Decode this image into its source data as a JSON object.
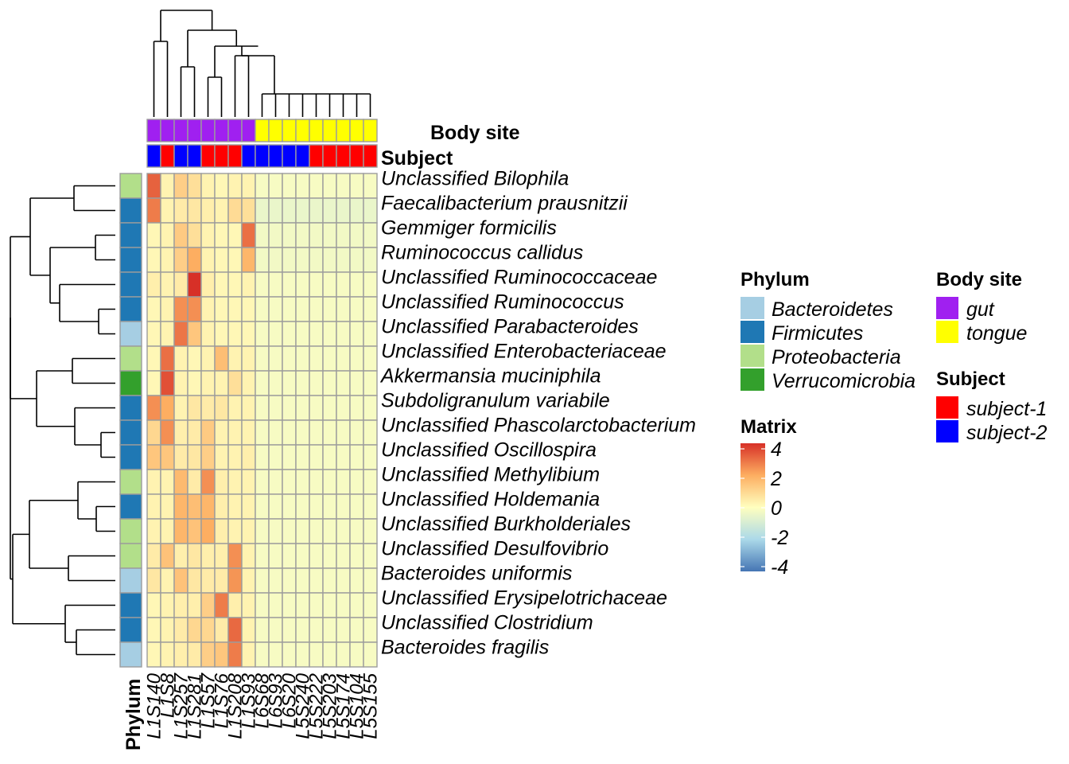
{
  "chart_data": {
    "type": "heatmap",
    "columns": [
      "L1S140",
      "L1S8",
      "L1S257",
      "L1S281",
      "L1S57",
      "L1S76",
      "L1S208",
      "L1S93",
      "L6S68",
      "L6S93",
      "L6S20",
      "L5S240",
      "L5S222",
      "L5S203",
      "L5S174",
      "L5S104",
      "L5S155"
    ],
    "rows": [
      "Unclassified  Bilophila",
      "Faecalibacterium prausnitzii",
      "Gemmiger formicilis",
      "Ruminococcus callidus",
      "Unclassified Ruminococcaceae",
      "Unclassified  Ruminococcus",
      "Unclassified  Parabacteroides",
      "Unclassified Enterobacteriaceae",
      "Akkermansia muciniphila",
      "Subdoligranulum variabile",
      "Unclassified  Phascolarctobacterium",
      "Unclassified  Oscillospira",
      "Unclassified  Methylibium",
      "Unclassified  Holdemania",
      "Unclassified Burkholderiales",
      "Unclassified  Desulfovibrio",
      "Bacteroides uniformis",
      "Unclassified Erysipelotrichaceae",
      "Unclassified  Clostridium",
      "Bacteroides fragilis"
    ],
    "values": [
      [
        3.2,
        0.3,
        1.2,
        0.8,
        0.3,
        0.2,
        0.3,
        0.3,
        -0.2,
        -0.2,
        -0.2,
        -0.2,
        -0.2,
        -0.2,
        -0.2,
        -0.2,
        -0.2
      ],
      [
        2.8,
        0.3,
        0.5,
        0.6,
        0.4,
        0.3,
        0.9,
        0.8,
        -0.5,
        -0.5,
        -0.5,
        -0.5,
        -0.5,
        -0.5,
        -0.5,
        -0.5,
        -0.5
      ],
      [
        0.2,
        0.3,
        1.3,
        0.8,
        0.3,
        0.2,
        0.2,
        3.0,
        -0.3,
        -0.3,
        -0.3,
        -0.3,
        -0.3,
        -0.3,
        -0.3,
        -0.3,
        -0.3
      ],
      [
        0.2,
        0.3,
        1.2,
        2.0,
        0.3,
        0.2,
        0.2,
        1.8,
        -0.3,
        -0.3,
        -0.3,
        -0.3,
        -0.3,
        -0.3,
        -0.3,
        -0.3,
        -0.3
      ],
      [
        0.4,
        0.3,
        0.5,
        4.0,
        0.4,
        0.2,
        0.2,
        0.3,
        -0.2,
        -0.2,
        -0.2,
        -0.2,
        -0.2,
        -0.2,
        -0.2,
        -0.2,
        -0.2
      ],
      [
        0.2,
        0.3,
        2.5,
        2.5,
        0.3,
        0.2,
        0.2,
        0.2,
        -0.2,
        -0.2,
        -0.2,
        -0.2,
        -0.2,
        -0.2,
        -0.2,
        -0.2,
        -0.2
      ],
      [
        0.2,
        0.3,
        2.9,
        1.4,
        0.3,
        0.2,
        0.2,
        0.2,
        -0.2,
        -0.2,
        -0.2,
        -0.2,
        -0.2,
        -0.2,
        -0.2,
        -0.2,
        -0.2
      ],
      [
        0.2,
        3.0,
        0.3,
        0.2,
        0.3,
        1.6,
        0.3,
        0.3,
        -0.2,
        -0.2,
        -0.2,
        -0.2,
        -0.2,
        -0.2,
        -0.2,
        -0.2,
        -0.2
      ],
      [
        0.2,
        3.5,
        0.3,
        0.2,
        0.3,
        0.3,
        0.8,
        0.3,
        -0.2,
        -0.2,
        -0.2,
        -0.2,
        -0.2,
        -0.2,
        -0.2,
        -0.2,
        -0.2
      ],
      [
        2.5,
        2.0,
        0.3,
        0.6,
        0.5,
        0.6,
        0.3,
        0.3,
        -0.2,
        -0.2,
        -0.2,
        -0.2,
        -0.2,
        -0.2,
        -0.2,
        -0.2,
        -0.2
      ],
      [
        1.0,
        2.5,
        0.4,
        0.5,
        1.3,
        0.3,
        0.3,
        0.3,
        -0.2,
        -0.2,
        -0.2,
        -0.2,
        -0.2,
        -0.2,
        -0.2,
        -0.2,
        -0.2
      ],
      [
        1.4,
        1.4,
        0.5,
        0.6,
        1.2,
        0.3,
        0.3,
        0.4,
        -0.2,
        -0.2,
        -0.2,
        -0.2,
        -0.2,
        -0.2,
        -0.2,
        -0.2,
        -0.2
      ],
      [
        0.3,
        0.3,
        1.7,
        0.5,
        2.5,
        0.4,
        0.3,
        0.3,
        -0.2,
        -0.2,
        -0.2,
        -0.2,
        -0.2,
        -0.2,
        -0.2,
        -0.2,
        -0.2
      ],
      [
        0.3,
        0.3,
        1.8,
        1.6,
        1.8,
        0.4,
        0.3,
        0.3,
        -0.2,
        -0.2,
        -0.2,
        -0.2,
        -0.2,
        -0.2,
        -0.2,
        -0.2,
        -0.2
      ],
      [
        0.3,
        0.3,
        1.8,
        1.5,
        2.0,
        0.4,
        0.3,
        0.3,
        -0.2,
        -0.2,
        -0.2,
        -0.2,
        -0.2,
        -0.2,
        -0.2,
        -0.2,
        -0.2
      ],
      [
        0.5,
        1.5,
        0.4,
        0.6,
        0.4,
        0.4,
        2.5,
        0.3,
        -0.2,
        -0.2,
        -0.2,
        -0.2,
        -0.2,
        -0.2,
        -0.2,
        -0.2,
        -0.2
      ],
      [
        0.6,
        0.3,
        1.5,
        0.6,
        0.5,
        0.5,
        2.4,
        0.3,
        -0.2,
        -0.2,
        -0.2,
        -0.2,
        -0.2,
        -0.2,
        -0.2,
        -0.2,
        -0.2
      ],
      [
        0.2,
        0.3,
        0.4,
        0.4,
        1.2,
        2.8,
        0.4,
        0.3,
        -0.2,
        -0.2,
        -0.2,
        -0.2,
        -0.2,
        -0.2,
        -0.2,
        -0.2,
        -0.2
      ],
      [
        0.2,
        0.3,
        0.5,
        1.0,
        1.0,
        0.5,
        3.1,
        0.3,
        -0.2,
        -0.2,
        -0.2,
        -0.2,
        -0.2,
        -0.2,
        -0.2,
        -0.2,
        -0.2
      ],
      [
        0.2,
        0.3,
        0.4,
        0.5,
        1.2,
        1.4,
        2.8,
        0.3,
        -0.2,
        -0.2,
        -0.2,
        -0.2,
        -0.2,
        -0.2,
        -0.2,
        -0.2,
        -0.2
      ]
    ],
    "color_scale": {
      "min": -4,
      "max": 4,
      "stops": [
        {
          "value": -4,
          "color": "#4575B4"
        },
        {
          "value": -2,
          "color": "#ABD9E9"
        },
        {
          "value": 0,
          "color": "#FFFFBF"
        },
        {
          "value": 2,
          "color": "#FDAE61"
        },
        {
          "value": 4,
          "color": "#D73027"
        }
      ]
    },
    "col_annotations": {
      "Body site": [
        "gut",
        "gut",
        "gut",
        "gut",
        "gut",
        "gut",
        "gut",
        "gut",
        "tongue",
        "tongue",
        "tongue",
        "tongue",
        "tongue",
        "tongue",
        "tongue",
        "tongue",
        "tongue"
      ],
      "Subject": [
        "subject-2",
        "subject-1",
        "subject-2",
        "subject-2",
        "subject-1",
        "subject-1",
        "subject-1",
        "subject-2",
        "subject-2",
        "subject-2",
        "subject-2",
        "subject-2",
        "subject-1",
        "subject-1",
        "subject-1",
        "subject-1",
        "subject-1"
      ]
    },
    "row_annotations": {
      "Phylum": [
        "Proteobacteria",
        "Firmicutes",
        "Firmicutes",
        "Firmicutes",
        "Firmicutes",
        "Firmicutes",
        "Bacteroidetes",
        "Proteobacteria",
        "Verrucomicrobia",
        "Firmicutes",
        "Firmicutes",
        "Firmicutes",
        "Proteobacteria",
        "Firmicutes",
        "Proteobacteria",
        "Proteobacteria",
        "Bacteroidetes",
        "Firmicutes",
        "Firmicutes",
        "Bacteroidetes"
      ]
    },
    "annotation_labels": {
      "body_site": "Body site",
      "subject": "Subject",
      "phylum": "Phylum"
    },
    "legend": {
      "phylum_title": "Phylum",
      "phylum": [
        {
          "label": "Bacteroidetes",
          "color": "#A6CEE3"
        },
        {
          "label": "Firmicutes",
          "color": "#1F78B4"
        },
        {
          "label": "Proteobacteria",
          "color": "#B2DF8A"
        },
        {
          "label": "Verrucomicrobia",
          "color": "#33A02C"
        }
      ],
      "matrix_title": "Matrix",
      "matrix_ticks": [
        "4",
        "2",
        "0",
        "-2",
        "-4"
      ],
      "body_site_title": "Body site",
      "body_site": [
        {
          "label": "gut",
          "color": "#A020F0"
        },
        {
          "label": "tongue",
          "color": "#FFFF00"
        }
      ],
      "subject_title": "Subject",
      "subject": [
        {
          "label": "subject-1",
          "color": "#FF0000"
        },
        {
          "label": "subject-2",
          "color": "#0000FF"
        }
      ]
    }
  }
}
